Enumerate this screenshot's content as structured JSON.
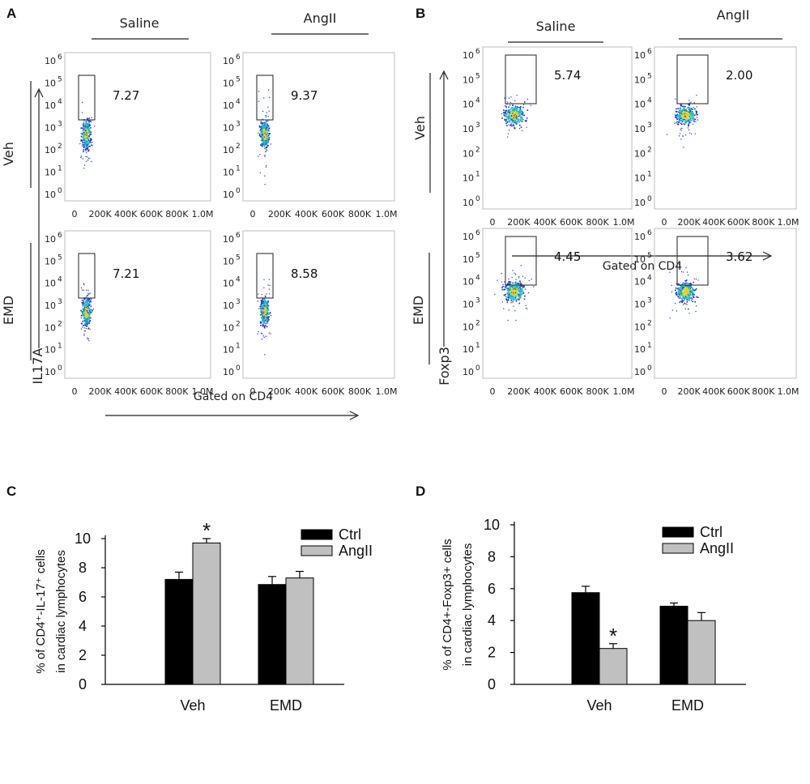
{
  "colors": {
    "ctrl": "#000000",
    "angii": "#c0c0c0",
    "frame": "#bdbdbd",
    "dot_low": "#1a2fd6",
    "dot_mid": "#22b8c8",
    "dot_high": "#d8d42a"
  },
  "flow": {
    "x_ticks": [
      "0",
      "200K",
      "400K",
      "600K",
      "800K",
      "1.0M"
    ],
    "y_ticks": [
      {
        "base": "10",
        "exp": "6"
      },
      {
        "base": "10",
        "exp": "5"
      },
      {
        "base": "10",
        "exp": "4"
      },
      {
        "base": "10",
        "exp": "3"
      },
      {
        "base": "10",
        "exp": "2"
      },
      {
        "base": "10",
        "exp": "1"
      },
      {
        "base": "10",
        "exp": "0"
      }
    ],
    "gated_on": "Gated on CD4",
    "A": {
      "panel_label": "A",
      "col_headers": [
        "Saline",
        "AngII"
      ],
      "row_labels": [
        "Veh",
        "EMD"
      ],
      "marker": "IL17A",
      "gate_values": [
        "7.27",
        "9.37",
        "7.21",
        "8.58"
      ]
    },
    "B": {
      "panel_label": "B",
      "col_headers": [
        "Saline",
        "AngII"
      ],
      "row_labels": [
        "Veh",
        "EMD"
      ],
      "marker": "Foxp3",
      "gate_values": [
        "5.74",
        "2.00",
        "4.45",
        "3.62"
      ]
    }
  },
  "chart_data": [
    {
      "panel_label": "C",
      "type": "bar",
      "categories": [
        "Veh",
        "EMD"
      ],
      "series": [
        {
          "name": "Ctrl",
          "values": [
            7.2,
            6.85
          ],
          "errors": [
            0.5,
            0.55
          ]
        },
        {
          "name": "AngII",
          "values": [
            9.7,
            7.3
          ],
          "errors": [
            0.3,
            0.45
          ]
        }
      ],
      "ylabel_line1": "% of CD4⁺-IL-17⁺ cells",
      "ylabel_line2": "in cardiac lymphocytes",
      "ylim": [
        0,
        10
      ],
      "yticks": [
        "0",
        "2",
        "4",
        "6",
        "8",
        "10"
      ],
      "annotations": [
        {
          "text": "*",
          "category": "Veh",
          "series": "AngII"
        }
      ],
      "legend": "top-right"
    },
    {
      "panel_label": "D",
      "type": "bar",
      "categories": [
        "Veh",
        "EMD"
      ],
      "series": [
        {
          "name": "Ctrl",
          "values": [
            5.75,
            4.9
          ],
          "errors": [
            0.4,
            0.2
          ]
        },
        {
          "name": "AngII",
          "values": [
            2.25,
            4.0
          ],
          "errors": [
            0.3,
            0.5
          ]
        }
      ],
      "ylabel_line1": "% of CD4+-Foxp3+ cells",
      "ylabel_line2": "in cardiac lymphocytes",
      "ylim": [
        0,
        10
      ],
      "yticks": [
        "0",
        "2",
        "4",
        "6",
        "8",
        "10"
      ],
      "annotations": [
        {
          "text": "*",
          "category": "Veh",
          "series": "AngII"
        }
      ],
      "legend": "top-right"
    }
  ]
}
